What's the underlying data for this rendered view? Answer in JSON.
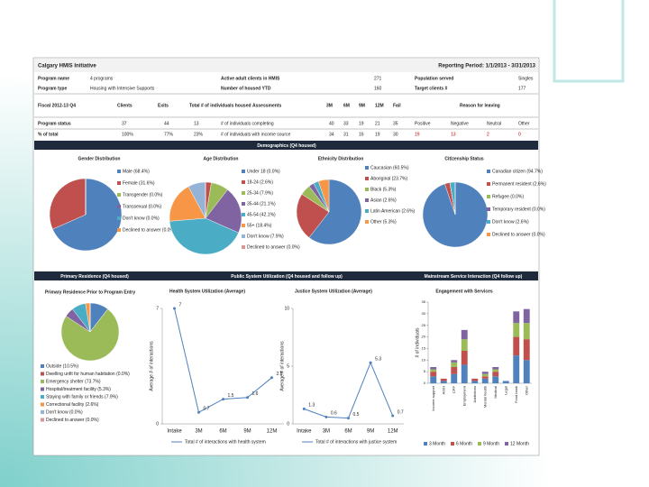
{
  "header": {
    "title": "Calgary HMIS Initiative",
    "period": "Reporting Period: 1/1/2013 - 3/31/2013"
  },
  "table": {
    "rows": [
      [
        "Program name",
        "4 programs",
        "Active adult clients in HMIS",
        "271",
        "Population served",
        "Singles"
      ],
      [
        "Program type",
        "Housing with Intensive Supports",
        "Number of housed YTD",
        "160",
        "Target clients #",
        "177"
      ],
      [
        "Fiscal 2012-13 Q4",
        "Clients",
        "Exits",
        "Total # of individuals housed",
        "Assessments",
        "3M",
        "6M",
        "9M",
        "12M",
        "Fail",
        "Reason for leaving"
      ],
      [
        "Program status",
        "37",
        "44",
        "13",
        "# of individuals completing",
        "40",
        "33",
        "19",
        "21",
        "35",
        "Positive",
        "Negative",
        "Neutral",
        "Other"
      ],
      [
        "% of total",
        "100%",
        "77%",
        "23%",
        "# of individuals with income source",
        "34",
        "31",
        "16",
        "19",
        "30",
        "19",
        "13",
        "2",
        "0"
      ]
    ]
  },
  "sections": [
    "Demographics (Q4 housed)",
    "Primary Residence (Q4 housed)",
    "Public System Utilization (Q4 housed and follow up)",
    "Mainstream Service Interaction (Q4 follow up)"
  ],
  "chart_data": [
    {
      "type": "pie",
      "title": "Gender Distribution",
      "categories": [
        "Male (68.4%)",
        "Female (31.6%)",
        "Transgender (0.0%)",
        "Transsexual (0.0%)",
        "Don't know (0.0%)",
        "Declined to answer (0.0%)"
      ],
      "values": [
        68.4,
        31.6,
        0,
        0,
        0,
        0
      ],
      "colors": [
        "#4f81bd",
        "#c0504d",
        "#9bbb59",
        "#8064a2",
        "#4bacc6",
        "#f79646"
      ]
    },
    {
      "type": "pie",
      "title": "Age Distribution",
      "categories": [
        "Under 18 (0.0%)",
        "18-24 (2.6%)",
        "25-34 (7.9%)",
        "35-44 (21.1%)",
        "45-54 (42.1%)",
        "55+ (18.4%)",
        "Don't know (7.9%)",
        "Declined to answer (0.0%)"
      ],
      "values": [
        0,
        2.6,
        7.9,
        21.1,
        42.1,
        18.4,
        7.9,
        0
      ],
      "colors": [
        "#4f81bd",
        "#c0504d",
        "#9bbb59",
        "#8064a2",
        "#4bacc6",
        "#f79646",
        "#95b3d7",
        "#d99694"
      ]
    },
    {
      "type": "pie",
      "title": "Ethnicity Distribution",
      "categories": [
        "Caucasian (60.5%)",
        "Aboriginal (23.7%)",
        "Black (5.3%)",
        "Asian (2.6%)",
        "Latin American (2.6%)",
        "Other (5.3%)"
      ],
      "values": [
        60.5,
        23.7,
        5.3,
        2.6,
        2.6,
        5.3
      ],
      "colors": [
        "#4f81bd",
        "#c0504d",
        "#9bbb59",
        "#8064a2",
        "#4bacc6",
        "#f79646"
      ]
    },
    {
      "type": "pie",
      "title": "Citizenship Status",
      "categories": [
        "Canadian citizen (94.7%)",
        "Permanent resident (2.6%)",
        "Refugee (0.0%)",
        "Temporary resident (0.0%)",
        "Don't know (2.6%)",
        "Declined to answer (0.0%)"
      ],
      "values": [
        94.7,
        2.6,
        0,
        0,
        2.6,
        0
      ],
      "colors": [
        "#4f81bd",
        "#c0504d",
        "#9bbb59",
        "#8064a2",
        "#4bacc6",
        "#f79646"
      ]
    },
    {
      "type": "pie",
      "title": "Primary Residence Prior to Program Entry",
      "categories": [
        "Outside (10.5%)",
        "Dwelling unfit for human habitation (0.0%)",
        "Emergency shelter (73.7%)",
        "Hospital/treatment facility (5.3%)",
        "Staying with family or friends (7.9%)",
        "Correctional facility (2.6%)",
        "Don't know (0.0%)",
        "Declined to answer (0.0%)"
      ],
      "values": [
        10.5,
        0,
        73.7,
        5.3,
        7.9,
        2.6,
        0,
        0
      ],
      "colors": [
        "#4f81bd",
        "#c0504d",
        "#9bbb59",
        "#8064a2",
        "#4bacc6",
        "#f79646",
        "#95b3d7",
        "#d99694"
      ]
    },
    {
      "type": "line",
      "title": "Health System Utilization (Average)",
      "y_label": "Average # of interactions",
      "categories": [
        "Intake",
        "3M",
        "6M",
        "9M",
        "12M"
      ],
      "series": [
        {
          "name": "Total # of interactions with health system",
          "color": "#4f81bd",
          "values": [
            7,
            0.7,
            1.5,
            1.6,
            2.8
          ]
        }
      ],
      "ylim": [
        0,
        7
      ],
      "yticks": [
        0,
        7
      ]
    },
    {
      "type": "line",
      "title": "Justice System Utilization (Average)",
      "y_label": "Average # of interactions",
      "categories": [
        "Intake",
        "3M",
        "6M",
        "9M",
        "12M"
      ],
      "series": [
        {
          "name": "Total # of interactions with justice system",
          "color": "#4f81bd",
          "values": [
            1.3,
            0.6,
            0.5,
            5.3,
            0.7
          ]
        }
      ],
      "ylim": [
        0,
        10
      ],
      "yticks": [
        0,
        5,
        10
      ]
    },
    {
      "type": "bar",
      "stacked": true,
      "title": "Engagement with Services",
      "y_label": "# of individuals",
      "categories": [
        "Income support",
        "AISH",
        "CPP",
        "Employment",
        "Addictions",
        "Mental health",
        "Medical",
        "Legal",
        "Food bank",
        "Other"
      ],
      "series": [
        {
          "name": "3 Month",
          "color": "#4f81bd",
          "values": [
            3,
            1,
            4,
            8,
            1,
            2,
            3,
            1,
            12,
            10
          ]
        },
        {
          "name": "6 Month",
          "color": "#c0504d",
          "values": [
            2,
            1,
            3,
            6,
            1,
            1,
            2,
            0,
            8,
            9
          ]
        },
        {
          "name": "9 Month",
          "color": "#9bbb59",
          "values": [
            1,
            0,
            2,
            5,
            0,
            1,
            1,
            0,
            6,
            7
          ]
        },
        {
          "name": "12 Month",
          "color": "#8064a2",
          "values": [
            1,
            0,
            1,
            4,
            0,
            1,
            1,
            0,
            5,
            6
          ]
        }
      ],
      "ylim": [
        0,
        35
      ],
      "yticks": [
        0,
        5,
        10,
        15,
        20,
        25,
        30,
        35
      ]
    }
  ]
}
